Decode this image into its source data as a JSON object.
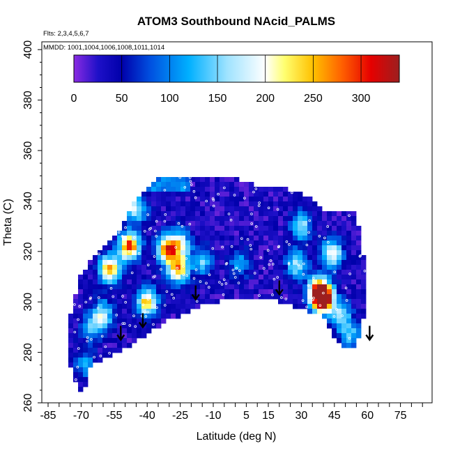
{
  "chart_data": {
    "type": "heatmap",
    "title": "ATOM3 Southbound NAcid_PALMS",
    "notes": [
      "Flts: 2,3,4,5,6,7",
      "MMDD: 1001,1004,1006,1008,1011,1014"
    ],
    "xlabel": "Latitude (deg N)",
    "ylabel": "Theta (C)",
    "xlim": [
      -85,
      85
    ],
    "ylim": [
      260,
      400
    ],
    "x_ticks": [
      -85,
      -70,
      -55,
      -40,
      -25,
      -10,
      5,
      15,
      30,
      45,
      60,
      75
    ],
    "y_ticks": [
      260,
      280,
      300,
      320,
      340,
      360,
      380,
      400
    ],
    "colorbar": {
      "min": 0,
      "max": 340,
      "ticks": [
        0,
        50,
        100,
        150,
        200,
        250,
        300
      ],
      "colors": [
        "#8a2be2",
        "#1e10c8",
        "#0000aa",
        "#0050e0",
        "#00b0ff",
        "#9fe3ff",
        "#ffffff",
        "#ffff70",
        "#ffc000",
        "#ff6000",
        "#e60000",
        "#9c1f1f"
      ]
    },
    "data_envelope": {
      "latitude": [
        -71,
        -75,
        -76,
        -71,
        -65,
        -55,
        -45,
        -35,
        -25,
        -15,
        -10,
        0,
        10,
        20,
        30,
        40,
        50,
        55,
        57,
        60,
        59,
        58,
        55,
        50,
        45,
        40,
        30,
        20,
        10,
        0,
        -10,
        -20,
        -25,
        -30,
        -35,
        -45,
        -50,
        -60,
        -66,
        -67
      ],
      "theta": [
        263,
        275,
        290,
        310,
        317,
        325,
        341,
        350,
        350,
        349,
        349,
        349,
        346,
        345,
        344,
        336,
        336,
        335,
        325,
        308,
        300,
        291,
        283,
        282,
        286,
        295,
        297,
        300,
        302,
        301,
        300,
        297,
        294,
        293,
        290,
        284,
        281,
        277,
        275,
        268
      ]
    },
    "hotspots": [
      {
        "latitude": 40,
        "theta": 301,
        "value": 300
      },
      {
        "latitude": 38,
        "theta": 304,
        "value": 280
      },
      {
        "latitude": -48,
        "theta": 322,
        "value": 270
      },
      {
        "latitude": -40,
        "theta": 300,
        "value": 220
      },
      {
        "latitude": -31,
        "theta": 321,
        "value": 240
      },
      {
        "latitude": -26,
        "theta": 313,
        "value": 230
      },
      {
        "latitude": -57,
        "theta": 313,
        "value": 230
      },
      {
        "latitude": 44,
        "theta": 319,
        "value": 180
      },
      {
        "latitude": -25,
        "theta": 323,
        "value": 150
      },
      {
        "latitude": -45,
        "theta": 337,
        "value": 150
      },
      {
        "latitude": 30,
        "theta": 330,
        "value": 140
      },
      {
        "latitude": 28,
        "theta": 315,
        "value": 140
      },
      {
        "latitude": -60,
        "theta": 295,
        "value": 140
      },
      {
        "latitude": -15,
        "theta": 316,
        "value": 110
      },
      {
        "latitude": 2,
        "theta": 315,
        "value": 90
      },
      {
        "latitude": -65,
        "theta": 290,
        "value": 100
      },
      {
        "latitude": 48,
        "theta": 295,
        "value": 120
      },
      {
        "latitude": 52,
        "theta": 287,
        "value": 110
      },
      {
        "latitude": -68,
        "theta": 275,
        "value": 90
      }
    ],
    "arrows": [
      {
        "latitude": -52,
        "theta": 285
      },
      {
        "latitude": -42,
        "theta": 290
      },
      {
        "latitude": -18,
        "theta": 301
      },
      {
        "latitude": 20,
        "theta": 303
      },
      {
        "latitude": 61,
        "theta": 285
      }
    ],
    "grid": false
  }
}
